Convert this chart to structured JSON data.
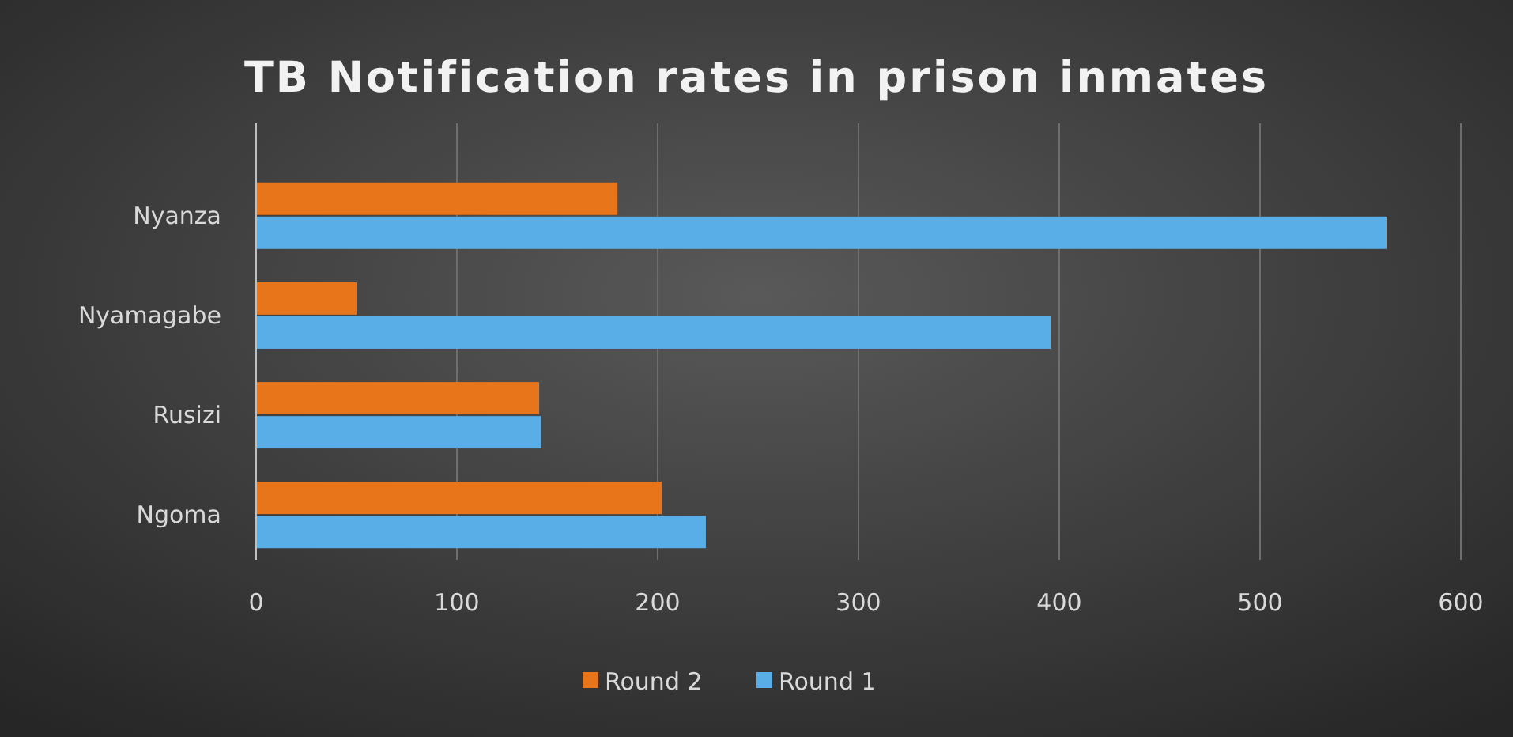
{
  "chart_data": {
    "type": "bar",
    "orientation": "horizontal",
    "title": "TB Notification rates in prison inmates",
    "categories": [
      "Nyanza",
      "Nyamagabe",
      "Rusizi",
      "Ngoma"
    ],
    "series": [
      {
        "name": "Round 2",
        "color": "#e8751a",
        "values": [
          180,
          50,
          141,
          202
        ]
      },
      {
        "name": "Round 1",
        "color": "#5aaee8",
        "values": [
          563,
          396,
          142,
          224
        ]
      }
    ],
    "xlim": [
      0,
      600
    ],
    "xticks": [
      0,
      100,
      200,
      300,
      400,
      500,
      600
    ],
    "grid": "x",
    "legend": "bottom"
  }
}
